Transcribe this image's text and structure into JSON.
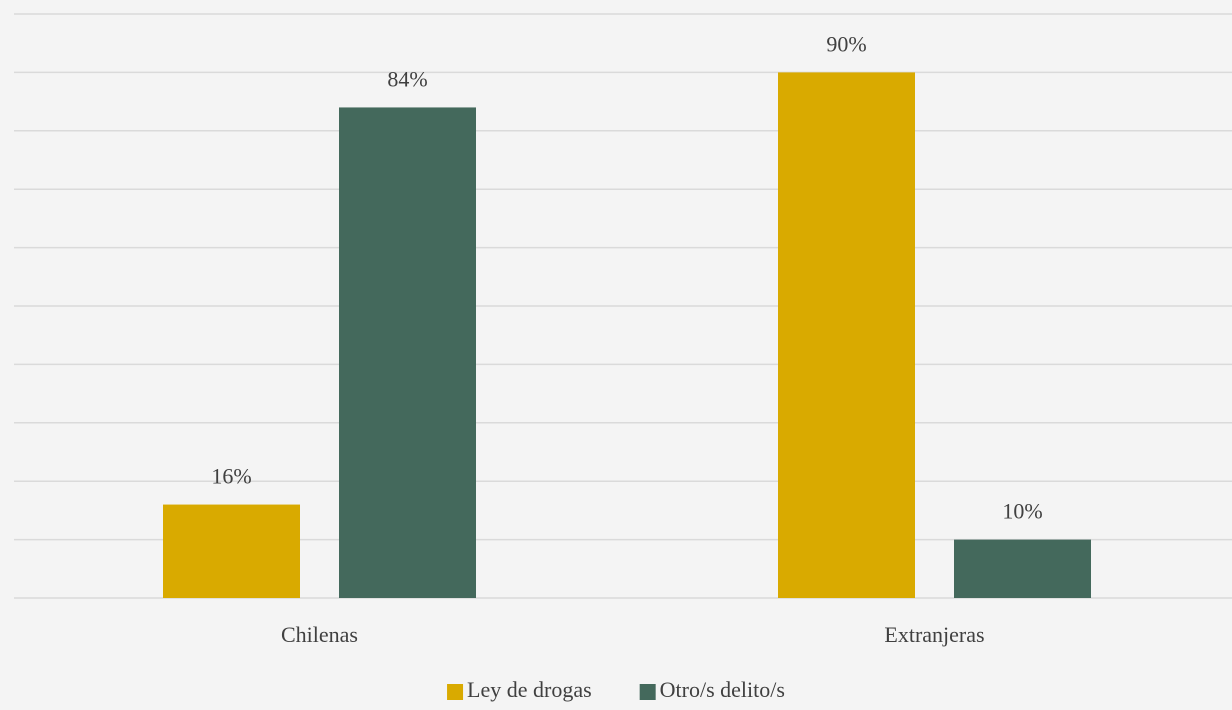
{
  "chart_data": {
    "type": "bar",
    "categories": [
      "Chilenas",
      "Extranjeras"
    ],
    "series": [
      {
        "name": "Ley de drogas",
        "color": "#d9aa00",
        "values": [
          16,
          90
        ],
        "value_labels": [
          "16%",
          "90%"
        ]
      },
      {
        "name": "Otro/s delito/s",
        "color": "#44695c",
        "values": [
          84,
          10
        ],
        "value_labels": [
          "84%",
          "10%"
        ]
      }
    ],
    "ylim": [
      0,
      100
    ],
    "yticks": [
      0,
      10,
      20,
      30,
      40,
      50,
      60,
      70,
      80,
      90,
      100
    ],
    "grid": true,
    "legend": "bottom"
  }
}
